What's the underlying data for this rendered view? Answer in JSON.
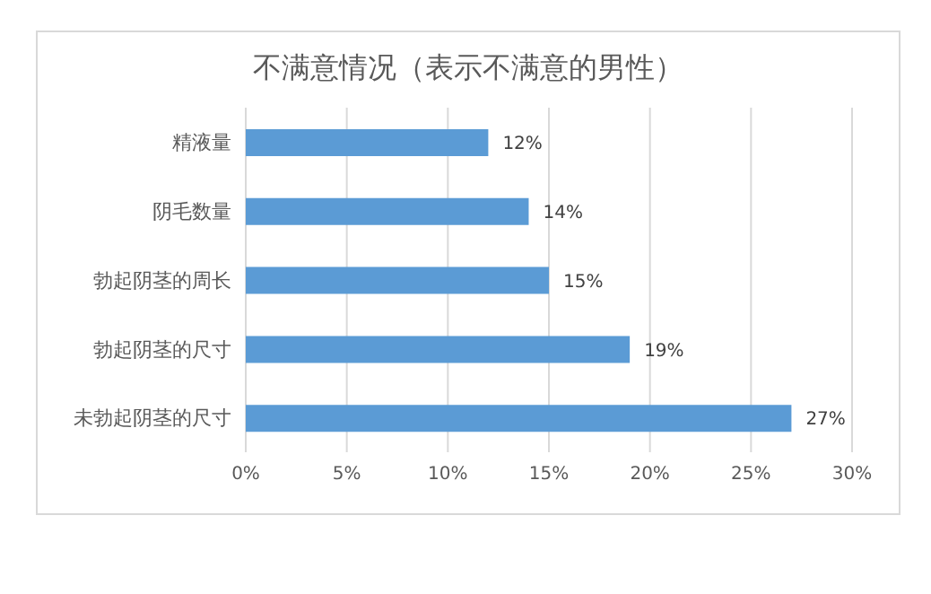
{
  "chart_data": {
    "type": "bar",
    "orientation": "horizontal",
    "title": "不满意情况（表示不满意的男性）",
    "categories": [
      "精液量",
      "阴毛数量",
      "勃起阴茎的周长",
      "勃起阴茎的尺寸",
      "未勃起阴茎的尺寸"
    ],
    "values": [
      12,
      14,
      15,
      19,
      27
    ],
    "value_labels": [
      "12%",
      "14%",
      "15%",
      "19%",
      "27%"
    ],
    "color": "#5b9bd5",
    "xlim": [
      0,
      30
    ],
    "xticks": [
      {
        "value": 0,
        "label": "0%"
      },
      {
        "value": 5,
        "label": "5%"
      },
      {
        "value": 10,
        "label": "10%"
      },
      {
        "value": 15,
        "label": "15%"
      },
      {
        "value": 20,
        "label": "20%"
      },
      {
        "value": 25,
        "label": "25%"
      },
      {
        "value": 30,
        "label": "30%"
      }
    ],
    "grid": "x"
  }
}
